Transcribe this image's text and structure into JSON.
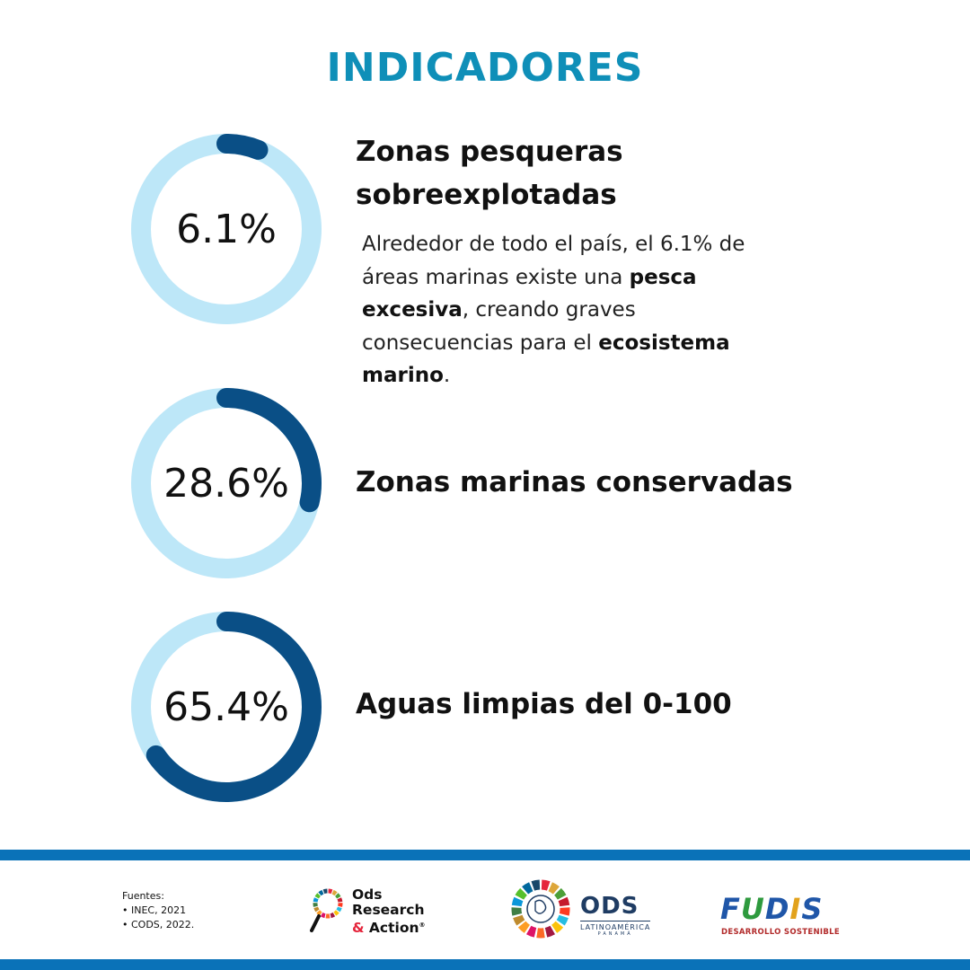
{
  "title": "INDICADORES",
  "colors": {
    "title": "#0f8fb8",
    "ring_track": "#bde7f8",
    "ring_fill": "#0a4f86",
    "band": "#0a72b8",
    "text": "#111111"
  },
  "chart_data": [
    {
      "type": "pie",
      "style": "donut",
      "value": 6.1,
      "max": 100,
      "center_label": "6.1%",
      "title": "Zonas pesqueras sobreexplotadas"
    },
    {
      "type": "pie",
      "style": "donut",
      "value": 28.6,
      "max": 100,
      "center_label": "28.6%",
      "title": "Zonas marinas conservadas"
    },
    {
      "type": "pie",
      "style": "donut",
      "value": 65.4,
      "max": 100,
      "center_label": "65.4%",
      "title": "Aguas limpias del 0-100"
    }
  ],
  "description": {
    "t1": "Alrededor de todo el país, el 6.1% de áreas marinas existe una ",
    "b1": "pesca excesiva",
    "t2": ", creando graves consecuencias para el ",
    "b2": "ecosistema marino",
    "t3": "."
  },
  "sources": {
    "label": "Fuentes:",
    "items": [
      "INEC, 2021",
      "CODS, 2022."
    ]
  },
  "logos": {
    "ods_research": {
      "line1": "Ods",
      "line2": "Research",
      "line3_amp": "&",
      "line3": " Action",
      "mark": "®"
    },
    "ods_latam": {
      "main": "ODS",
      "sub": "LATINOAMÉRICA",
      "sub2": "PANAMÁ"
    },
    "fudis": {
      "word": "FUDIS",
      "sub": "DESARROLLO SOSTENIBLE"
    }
  }
}
